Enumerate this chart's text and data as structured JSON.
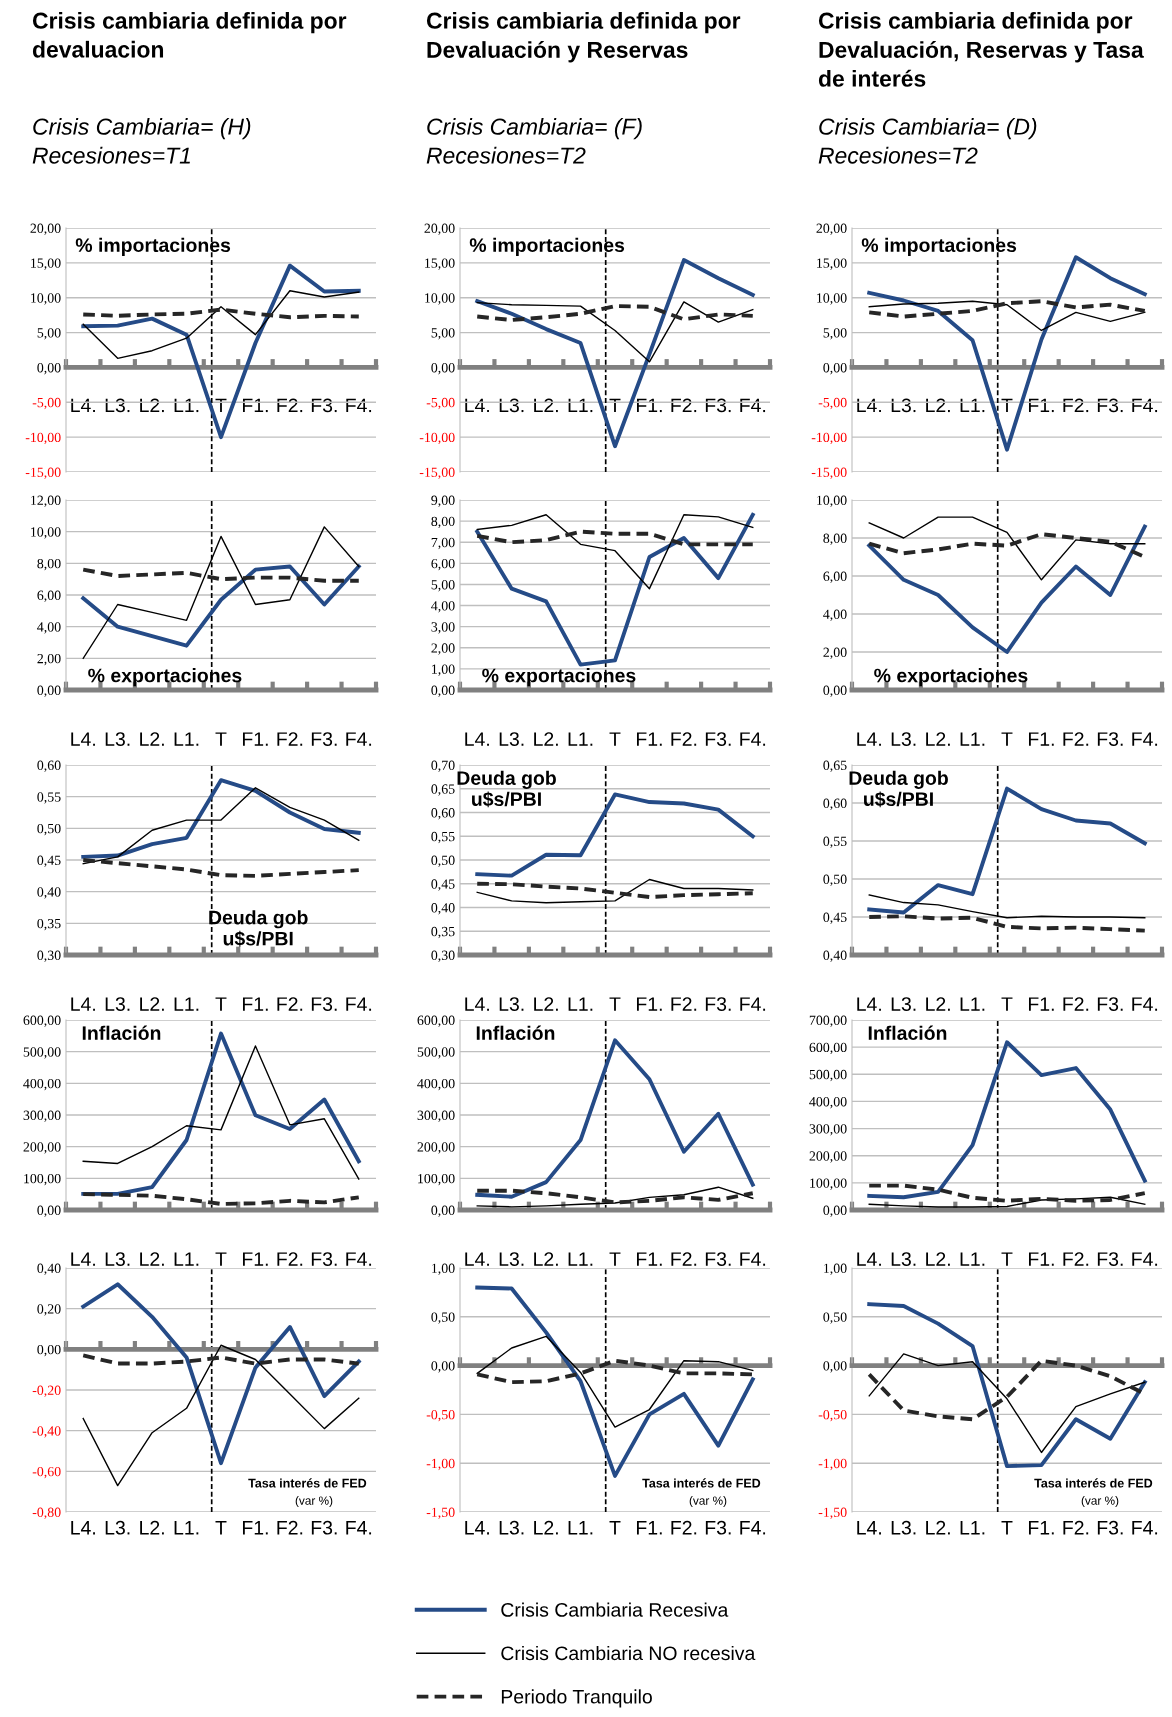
{
  "chart_data": [
    {
      "type": "line",
      "title": "Crisis cambiaria definida por\ndevaluacion",
      "subtitle": "Crisis Cambiaria= (H)\nRecesiones=T1",
      "annotations": [
        "% importaciones"
      ],
      "categories": [
        "L4.",
        "L3.",
        "L2.",
        "L1.",
        "T",
        "F1.",
        "F2.",
        "F3.",
        "F4."
      ],
      "ylim": [
        -15,
        20
      ],
      "yticks": [
        {
          "value": -15,
          "label": "-15,00"
        },
        {
          "value": -10,
          "label": "-10,00"
        },
        {
          "value": -5,
          "label": "-5,00"
        },
        {
          "value": 0,
          "label": "0,00"
        },
        {
          "value": 5,
          "label": "5,00"
        },
        {
          "value": 10,
          "label": "10,00"
        },
        {
          "value": 15,
          "label": "15,00"
        },
        {
          "value": 20,
          "label": "20,00"
        }
      ],
      "grid": "y",
      "ref_lines": [
        {
          "axis": "x",
          "value": "T",
          "color": "#000000",
          "line_style": "dashed"
        }
      ],
      "series": [
        {
          "color": "#254b87",
          "line_style": "solid",
          "values": [
            5.9,
            6.0,
            7.0,
            4.7,
            -10.0,
            3.5,
            14.6,
            10.9,
            11.0
          ]
        },
        {
          "color": "#000000",
          "line_style": "solid",
          "values": [
            6.2,
            1.3,
            2.4,
            4.2,
            8.7,
            4.7,
            11.0,
            10.1,
            10.8
          ]
        },
        {
          "color": "#262626",
          "line_style": "dashed",
          "values": [
            7.6,
            7.4,
            7.6,
            7.7,
            8.3,
            7.7,
            7.2,
            7.4,
            7.3
          ]
        }
      ]
    },
    {
      "type": "line",
      "title": "Crisis cambiaria definida por\nDevaluación y Reservas",
      "subtitle": "Crisis Cambiaria= (F)\nRecesiones=T2",
      "annotations": [
        "% importaciones"
      ],
      "categories": [
        "L4.",
        "L3.",
        "L2.",
        "L1.",
        "T",
        "F1.",
        "F2.",
        "F3.",
        "F4."
      ],
      "ylim": [
        -15,
        20
      ],
      "yticks": [
        {
          "value": -15,
          "label": "-15,00"
        },
        {
          "value": -10,
          "label": "-10,00"
        },
        {
          "value": -5,
          "label": "-5,00"
        },
        {
          "value": 0,
          "label": "0,00"
        },
        {
          "value": 5,
          "label": "5,00"
        },
        {
          "value": 10,
          "label": "10,00"
        },
        {
          "value": 15,
          "label": "15,00"
        },
        {
          "value": 20,
          "label": "20,00"
        }
      ],
      "grid": "y",
      "ref_lines": [
        {
          "axis": "x",
          "value": "T",
          "color": "#000000",
          "line_style": "dashed"
        }
      ],
      "series": [
        {
          "color": "#254b87",
          "line_style": "solid",
          "values": [
            9.5,
            7.7,
            5.5,
            3.5,
            -11.3,
            1.9,
            15.4,
            12.8,
            10.4
          ]
        },
        {
          "color": "#000000",
          "line_style": "solid",
          "values": [
            9.3,
            9.0,
            8.9,
            8.8,
            5.3,
            0.8,
            9.4,
            6.5,
            8.3
          ]
        },
        {
          "color": "#262626",
          "line_style": "dashed",
          "values": [
            7.3,
            6.8,
            7.2,
            7.7,
            8.8,
            8.7,
            6.9,
            7.6,
            7.4
          ]
        }
      ]
    },
    {
      "type": "line",
      "title": "Crisis cambiaria definida por\nDevaluación, Reservas y Tasa\nde interés",
      "subtitle": "Crisis Cambiaria= (D)\nRecesiones=T2",
      "annotations": [
        "% importaciones"
      ],
      "categories": [
        "L4.",
        "L3.",
        "L2.",
        "L1.",
        "T",
        "F1.",
        "F2.",
        "F3.",
        "F4."
      ],
      "ylim": [
        -15,
        20
      ],
      "yticks": [
        {
          "value": -15,
          "label": "-15,00"
        },
        {
          "value": -10,
          "label": "-10,00"
        },
        {
          "value": -5,
          "label": "-5,00"
        },
        {
          "value": 0,
          "label": "0,00"
        },
        {
          "value": 5,
          "label": "5,00"
        },
        {
          "value": 10,
          "label": "10,00"
        },
        {
          "value": 15,
          "label": "15,00"
        },
        {
          "value": 20,
          "label": "20,00"
        }
      ],
      "grid": "y",
      "ref_lines": [
        {
          "axis": "x",
          "value": "T",
          "color": "#000000",
          "line_style": "dashed"
        }
      ],
      "series": [
        {
          "color": "#254b87",
          "line_style": "solid",
          "values": [
            10.7,
            9.6,
            8.1,
            3.9,
            -11.8,
            4.0,
            15.8,
            12.8,
            10.5
          ]
        },
        {
          "color": "#000000",
          "line_style": "solid",
          "values": [
            8.7,
            9.1,
            9.2,
            9.5,
            9.0,
            5.3,
            7.9,
            6.6,
            7.9
          ]
        },
        {
          "color": "#262626",
          "line_style": "dashed",
          "values": [
            7.9,
            7.3,
            7.7,
            8.1,
            9.2,
            9.5,
            8.6,
            9.0,
            8.1
          ]
        }
      ]
    },
    {
      "type": "line",
      "annotations": [
        "% exportaciones"
      ],
      "categories": [
        "L4.",
        "L3.",
        "L2.",
        "L1.",
        "T",
        "F1.",
        "F2.",
        "F3.",
        "F4."
      ],
      "ylim": [
        0,
        12
      ],
      "yticks": [
        {
          "value": 0,
          "label": "0,00"
        },
        {
          "value": 2,
          "label": "2,00"
        },
        {
          "value": 4,
          "label": "4,00"
        },
        {
          "value": 6,
          "label": "6,00"
        },
        {
          "value": 8,
          "label": "8,00"
        },
        {
          "value": 10,
          "label": "10,00"
        },
        {
          "value": 12,
          "label": "12,00"
        }
      ],
      "grid": "y",
      "ref_lines": [
        {
          "axis": "x",
          "value": "T",
          "color": "#000000",
          "line_style": "dashed"
        }
      ],
      "series": [
        {
          "color": "#254b87",
          "line_style": "solid",
          "values": [
            5.8,
            4.0,
            3.4,
            2.8,
            5.7,
            7.6,
            7.8,
            5.4,
            7.8
          ]
        },
        {
          "color": "#000000",
          "line_style": "solid",
          "values": [
            2.0,
            5.4,
            4.9,
            4.4,
            9.7,
            5.4,
            5.7,
            10.3,
            7.8
          ]
        },
        {
          "color": "#262626",
          "line_style": "dashed",
          "values": [
            7.6,
            7.2,
            7.3,
            7.4,
            7.0,
            7.1,
            7.1,
            6.9,
            6.9
          ]
        }
      ]
    },
    {
      "type": "line",
      "annotations": [
        "% exportaciones"
      ],
      "categories": [
        "L4.",
        "L3.",
        "L2.",
        "L1.",
        "T",
        "F1.",
        "F2.",
        "F3.",
        "F4."
      ],
      "ylim": [
        0,
        9
      ],
      "yticks": [
        {
          "value": 0,
          "label": "0,00"
        },
        {
          "value": 1,
          "label": "1,00"
        },
        {
          "value": 2,
          "label": "2,00"
        },
        {
          "value": 3,
          "label": "3,00"
        },
        {
          "value": 4,
          "label": "4,00"
        },
        {
          "value": 5,
          "label": "5,00"
        },
        {
          "value": 6,
          "label": "6,00"
        },
        {
          "value": 7,
          "label": "7,00"
        },
        {
          "value": 8,
          "label": "8,00"
        },
        {
          "value": 9,
          "label": "9,00"
        }
      ],
      "grid": "y",
      "ref_lines": [
        {
          "axis": "x",
          "value": "T",
          "color": "#000000",
          "line_style": "dashed"
        }
      ],
      "series": [
        {
          "color": "#254b87",
          "line_style": "solid",
          "values": [
            7.5,
            4.8,
            4.2,
            1.2,
            1.4,
            6.3,
            7.2,
            5.3,
            8.3
          ]
        },
        {
          "color": "#000000",
          "line_style": "solid",
          "values": [
            7.6,
            7.8,
            8.3,
            6.9,
            6.6,
            4.8,
            8.3,
            8.2,
            7.7
          ]
        },
        {
          "color": "#262626",
          "line_style": "dashed",
          "values": [
            7.3,
            7.0,
            7.1,
            7.5,
            7.4,
            7.4,
            6.9,
            6.9,
            6.9
          ]
        }
      ]
    },
    {
      "type": "line",
      "annotations": [
        "% exportaciones"
      ],
      "categories": [
        "L4.",
        "L3.",
        "L2.",
        "L1.",
        "T",
        "F1.",
        "F2.",
        "F3.",
        "F4."
      ],
      "ylim": [
        0,
        10
      ],
      "yticks": [
        {
          "value": 0,
          "label": "0,00"
        },
        {
          "value": 2,
          "label": "2,00"
        },
        {
          "value": 4,
          "label": "4,00"
        },
        {
          "value": 6,
          "label": "6,00"
        },
        {
          "value": 8,
          "label": "8,00"
        },
        {
          "value": 10,
          "label": "10,00"
        }
      ],
      "grid": "y",
      "ref_lines": [
        {
          "axis": "x",
          "value": "T",
          "color": "#000000",
          "line_style": "dashed"
        }
      ],
      "series": [
        {
          "color": "#254b87",
          "line_style": "solid",
          "values": [
            7.6,
            5.8,
            5.0,
            3.3,
            2.0,
            4.6,
            6.5,
            5.0,
            8.6
          ]
        },
        {
          "color": "#000000",
          "line_style": "solid",
          "values": [
            8.8,
            8.0,
            9.1,
            9.1,
            8.3,
            5.8,
            7.9,
            7.7,
            7.7
          ]
        },
        {
          "color": "#262626",
          "line_style": "dashed",
          "values": [
            7.7,
            7.2,
            7.4,
            7.7,
            7.6,
            8.2,
            8.0,
            7.8,
            7.0
          ]
        }
      ]
    },
    {
      "type": "line",
      "annotations": [
        "Deuda gob\nu$s/PBI"
      ],
      "categories": [
        "L4.",
        "L3.",
        "L2.",
        "L1.",
        "T",
        "F1.",
        "F2.",
        "F3.",
        "F4."
      ],
      "ylim": [
        0.3,
        0.6
      ],
      "yticks": [
        {
          "value": 0.3,
          "label": "0,30"
        },
        {
          "value": 0.35,
          "label": "0,35"
        },
        {
          "value": 0.4,
          "label": "0,40"
        },
        {
          "value": 0.45,
          "label": "0,45"
        },
        {
          "value": 0.5,
          "label": "0,50"
        },
        {
          "value": 0.55,
          "label": "0,55"
        },
        {
          "value": 0.6,
          "label": "0,60"
        }
      ],
      "grid": "y",
      "ref_lines": [
        {
          "axis": "x",
          "value": "T",
          "color": "#000000",
          "line_style": "dashed"
        }
      ],
      "series": [
        {
          "color": "#254b87",
          "line_style": "solid",
          "values": [
            0.455,
            0.457,
            0.475,
            0.485,
            0.576,
            0.559,
            0.525,
            0.499,
            0.493
          ]
        },
        {
          "color": "#000000",
          "line_style": "solid",
          "values": [
            0.444,
            0.455,
            0.497,
            0.513,
            0.513,
            0.564,
            0.533,
            0.513,
            0.481
          ]
        },
        {
          "color": "#262626",
          "line_style": "dashed",
          "values": [
            0.45,
            0.445,
            0.44,
            0.435,
            0.426,
            0.425,
            0.428,
            0.431,
            0.434
          ]
        }
      ]
    },
    {
      "type": "line",
      "annotations": [
        "Deuda gob\nu$s/PBI"
      ],
      "categories": [
        "L4.",
        "L3.",
        "L2.",
        "L1.",
        "T",
        "F1.",
        "F2.",
        "F3.",
        "F4."
      ],
      "ylim": [
        0.3,
        0.7
      ],
      "yticks": [
        {
          "value": 0.3,
          "label": "0,30"
        },
        {
          "value": 0.35,
          "label": "0,35"
        },
        {
          "value": 0.4,
          "label": "0,40"
        },
        {
          "value": 0.45,
          "label": "0,45"
        },
        {
          "value": 0.5,
          "label": "0,50"
        },
        {
          "value": 0.55,
          "label": "0,55"
        },
        {
          "value": 0.6,
          "label": "0,60"
        },
        {
          "value": 0.65,
          "label": "0,65"
        },
        {
          "value": 0.7,
          "label": "0,70"
        }
      ],
      "grid": "y",
      "ref_lines": [
        {
          "axis": "x",
          "value": "T",
          "color": "#000000",
          "line_style": "dashed"
        }
      ],
      "series": [
        {
          "color": "#254b87",
          "line_style": "solid",
          "values": [
            0.47,
            0.467,
            0.511,
            0.51,
            0.638,
            0.622,
            0.619,
            0.606,
            0.55
          ]
        },
        {
          "color": "#000000",
          "line_style": "solid",
          "values": [
            0.432,
            0.414,
            0.41,
            0.412,
            0.414,
            0.459,
            0.44,
            0.44,
            0.437
          ]
        },
        {
          "color": "#262626",
          "line_style": "dashed",
          "values": [
            0.45,
            0.449,
            0.444,
            0.44,
            0.431,
            0.422,
            0.426,
            0.428,
            0.43
          ]
        }
      ]
    },
    {
      "type": "line",
      "annotations": [
        "Deuda gob\nu$s/PBI"
      ],
      "categories": [
        "L4.",
        "L3.",
        "L2.",
        "L1.",
        "T",
        "F1.",
        "F2.",
        "F3.",
        "F4."
      ],
      "ylim": [
        0.4,
        0.65
      ],
      "yticks": [
        {
          "value": 0.4,
          "label": "0,40"
        },
        {
          "value": 0.45,
          "label": "0,45"
        },
        {
          "value": 0.5,
          "label": "0,50"
        },
        {
          "value": 0.55,
          "label": "0,55"
        },
        {
          "value": 0.6,
          "label": "0,60"
        },
        {
          "value": 0.65,
          "label": "0,65"
        }
      ],
      "grid": "y",
      "ref_lines": [
        {
          "axis": "x",
          "value": "T",
          "color": "#000000",
          "line_style": "dashed"
        }
      ],
      "series": [
        {
          "color": "#254b87",
          "line_style": "solid",
          "values": [
            0.46,
            0.456,
            0.492,
            0.48,
            0.619,
            0.592,
            0.577,
            0.573,
            0.547
          ]
        },
        {
          "color": "#000000",
          "line_style": "solid",
          "values": [
            0.479,
            0.469,
            0.466,
            0.457,
            0.449,
            0.451,
            0.45,
            0.45,
            0.449
          ]
        },
        {
          "color": "#262626",
          "line_style": "dashed",
          "values": [
            0.45,
            0.451,
            0.448,
            0.449,
            0.437,
            0.435,
            0.436,
            0.434,
            0.432
          ]
        }
      ]
    },
    {
      "type": "line",
      "annotations": [
        "Inflación"
      ],
      "categories": [
        "L4.",
        "L3.",
        "L2.",
        "L1.",
        "T",
        "F1.",
        "F2.",
        "F3.",
        "F4."
      ],
      "ylim": [
        0,
        600
      ],
      "yticks": [
        {
          "value": 0,
          "label": "0,00"
        },
        {
          "value": 100,
          "label": "100,00"
        },
        {
          "value": 200,
          "label": "200,00"
        },
        {
          "value": 300,
          "label": "300,00"
        },
        {
          "value": 400,
          "label": "400,00"
        },
        {
          "value": 500,
          "label": "500,00"
        },
        {
          "value": 600,
          "label": "600,00"
        }
      ],
      "grid": "y",
      "ref_lines": [
        {
          "axis": "x",
          "value": "T",
          "color": "#000000",
          "line_style": "dashed"
        }
      ],
      "series": [
        {
          "color": "#254b87",
          "line_style": "solid",
          "values": [
            51,
            51,
            72,
            221,
            557,
            299,
            256,
            349,
            154
          ]
        },
        {
          "color": "#000000",
          "line_style": "solid",
          "values": [
            154,
            147,
            200,
            266,
            253,
            518,
            269,
            288,
            98
          ]
        },
        {
          "color": "#262626",
          "line_style": "dashed",
          "values": [
            50,
            48,
            45,
            34,
            19,
            21,
            29,
            24,
            40
          ]
        }
      ]
    },
    {
      "type": "line",
      "annotations": [
        "Inflación"
      ],
      "categories": [
        "L4.",
        "L3.",
        "L2.",
        "L1.",
        "T",
        "F1.",
        "F2.",
        "F3.",
        "F4."
      ],
      "ylim": [
        0,
        600
      ],
      "yticks": [
        {
          "value": 0,
          "label": "0,00"
        },
        {
          "value": 100,
          "label": "100,00"
        },
        {
          "value": 200,
          "label": "200,00"
        },
        {
          "value": 300,
          "label": "300,00"
        },
        {
          "value": 400,
          "label": "400,00"
        },
        {
          "value": 500,
          "label": "500,00"
        },
        {
          "value": 600,
          "label": "600,00"
        }
      ],
      "grid": "y",
      "ref_lines": [
        {
          "axis": "x",
          "value": "T",
          "color": "#000000",
          "line_style": "dashed"
        }
      ],
      "series": [
        {
          "color": "#254b87",
          "line_style": "solid",
          "values": [
            48,
            42,
            88,
            221,
            536,
            413,
            184,
            304,
            80
          ]
        },
        {
          "color": "#000000",
          "line_style": "solid",
          "values": [
            13,
            10,
            13,
            18,
            22,
            40,
            48,
            72,
            37
          ]
        },
        {
          "color": "#262626",
          "line_style": "dashed",
          "values": [
            61,
            61,
            53,
            40,
            24,
            29,
            40,
            32,
            53
          ]
        }
      ]
    },
    {
      "type": "line",
      "annotations": [
        "Inflación"
      ],
      "categories": [
        "L4.",
        "L3.",
        "L2.",
        "L1.",
        "T",
        "F1.",
        "F2.",
        "F3.",
        "F4."
      ],
      "ylim": [
        0,
        700
      ],
      "yticks": [
        {
          "value": 0,
          "label": "0,00"
        },
        {
          "value": 100,
          "label": "100,00"
        },
        {
          "value": 200,
          "label": "200,00"
        },
        {
          "value": 300,
          "label": "300,00"
        },
        {
          "value": 400,
          "label": "400,00"
        },
        {
          "value": 500,
          "label": "500,00"
        },
        {
          "value": 600,
          "label": "600,00"
        },
        {
          "value": 700,
          "label": "700,00"
        }
      ],
      "grid": "y",
      "ref_lines": [
        {
          "axis": "x",
          "value": "T",
          "color": "#000000",
          "line_style": "dashed"
        }
      ],
      "series": [
        {
          "color": "#254b87",
          "line_style": "solid",
          "values": [
            52,
            47,
            67,
            239,
            618,
            497,
            523,
            370,
            108
          ]
        },
        {
          "color": "#000000",
          "line_style": "solid",
          "values": [
            21,
            15,
            11,
            11,
            13,
            37,
            41,
            47,
            21
          ]
        },
        {
          "color": "#262626",
          "line_style": "dashed",
          "values": [
            90,
            90,
            75,
            45,
            34,
            41,
            34,
            37,
            62
          ]
        }
      ]
    },
    {
      "type": "line",
      "annotations": [
        "Tasa interés de FED",
        "(var %)"
      ],
      "categories": [
        "L4.",
        "L3.",
        "L2.",
        "L1.",
        "T",
        "F1.",
        "F2.",
        "F3.",
        "F4."
      ],
      "ylim": [
        -0.8,
        0.4
      ],
      "yticks": [
        {
          "value": -0.8,
          "label": "-0,80"
        },
        {
          "value": -0.6,
          "label": "-0,60"
        },
        {
          "value": -0.4,
          "label": "-0,40"
        },
        {
          "value": -0.2,
          "label": "-0,20"
        },
        {
          "value": 0,
          "label": "0,00"
        },
        {
          "value": 0.2,
          "label": "0,20"
        },
        {
          "value": 0.4,
          "label": "0,40"
        }
      ],
      "grid": "y",
      "ref_lines": [
        {
          "axis": "x",
          "value": "T",
          "color": "#000000",
          "line_style": "dashed"
        }
      ],
      "series": [
        {
          "color": "#254b87",
          "line_style": "solid",
          "values": [
            0.21,
            0.32,
            0.16,
            -0.04,
            -0.56,
            -0.09,
            0.11,
            -0.23,
            -0.06
          ]
        },
        {
          "color": "#000000",
          "line_style": "solid",
          "values": [
            -0.34,
            -0.67,
            -0.41,
            -0.29,
            0.02,
            -0.05,
            -0.22,
            -0.39,
            -0.24
          ]
        },
        {
          "color": "#262626",
          "line_style": "dashed",
          "values": [
            -0.03,
            -0.07,
            -0.07,
            -0.06,
            -0.04,
            -0.07,
            -0.05,
            -0.05,
            -0.07
          ]
        }
      ]
    },
    {
      "type": "line",
      "annotations": [
        "Tasa interés de FED",
        "(var %)"
      ],
      "categories": [
        "L4.",
        "L3.",
        "L2.",
        "L1.",
        "T",
        "F1.",
        "F2.",
        "F3.",
        "F4."
      ],
      "ylim": [
        -1.5,
        1.0
      ],
      "yticks": [
        {
          "value": -1.5,
          "label": "-1,50"
        },
        {
          "value": -1.0,
          "label": "-1,00"
        },
        {
          "value": -0.5,
          "label": "-0,50"
        },
        {
          "value": 0,
          "label": "0,00"
        },
        {
          "value": 0.5,
          "label": "0,50"
        },
        {
          "value": 1.0,
          "label": "1,00"
        }
      ],
      "grid": "y",
      "legend": "bottom",
      "ref_lines": [
        {
          "axis": "x",
          "value": "T",
          "color": "#000000",
          "line_style": "dashed"
        }
      ],
      "series": [
        {
          "name": "Crisis Cambiaria Recesiva",
          "color": "#254b87",
          "line_style": "solid",
          "values": [
            0.8,
            0.79,
            0.34,
            -0.16,
            -1.13,
            -0.5,
            -0.29,
            -0.82,
            -0.14
          ]
        },
        {
          "name": "Crisis Cambiaria NO recesiva",
          "color": "#000000",
          "line_style": "solid",
          "values": [
            -0.08,
            0.18,
            0.3,
            -0.07,
            -0.63,
            -0.45,
            0.05,
            0.04,
            -0.05
          ]
        },
        {
          "name": "Periodo Tranquilo",
          "color": "#262626",
          "line_style": "dashed",
          "values": [
            -0.09,
            -0.17,
            -0.16,
            -0.08,
            0.05,
            0.0,
            -0.08,
            -0.08,
            -0.09
          ]
        }
      ]
    },
    {
      "type": "line",
      "annotations": [
        "Tasa interés de FED",
        "(var %)"
      ],
      "categories": [
        "L4.",
        "L3.",
        "L2.",
        "L1.",
        "T",
        "F1.",
        "F2.",
        "F3.",
        "F4."
      ],
      "ylim": [
        -1.5,
        1.0
      ],
      "yticks": [
        {
          "value": -1.5,
          "label": "-1,50"
        },
        {
          "value": -1.0,
          "label": "-1,00"
        },
        {
          "value": -0.5,
          "label": "-0,50"
        },
        {
          "value": 0,
          "label": "0,00"
        },
        {
          "value": 0.5,
          "label": "0,50"
        },
        {
          "value": 1.0,
          "label": "1,00"
        }
      ],
      "grid": "y",
      "ref_lines": [
        {
          "axis": "x",
          "value": "T",
          "color": "#000000",
          "line_style": "dashed"
        }
      ],
      "series": [
        {
          "color": "#254b87",
          "line_style": "solid",
          "values": [
            0.63,
            0.61,
            0.43,
            0.2,
            -1.03,
            -1.02,
            -0.55,
            -0.75,
            -0.17
          ]
        },
        {
          "color": "#000000",
          "line_style": "solid",
          "values": [
            -0.31,
            0.12,
            0.0,
            0.04,
            -0.34,
            -0.89,
            -0.42,
            -0.29,
            -0.17
          ]
        },
        {
          "color": "#262626",
          "line_style": "dashed",
          "values": [
            -0.09,
            -0.46,
            -0.52,
            -0.55,
            -0.32,
            0.05,
            0.0,
            -0.11,
            -0.29
          ]
        }
      ]
    }
  ]
}
